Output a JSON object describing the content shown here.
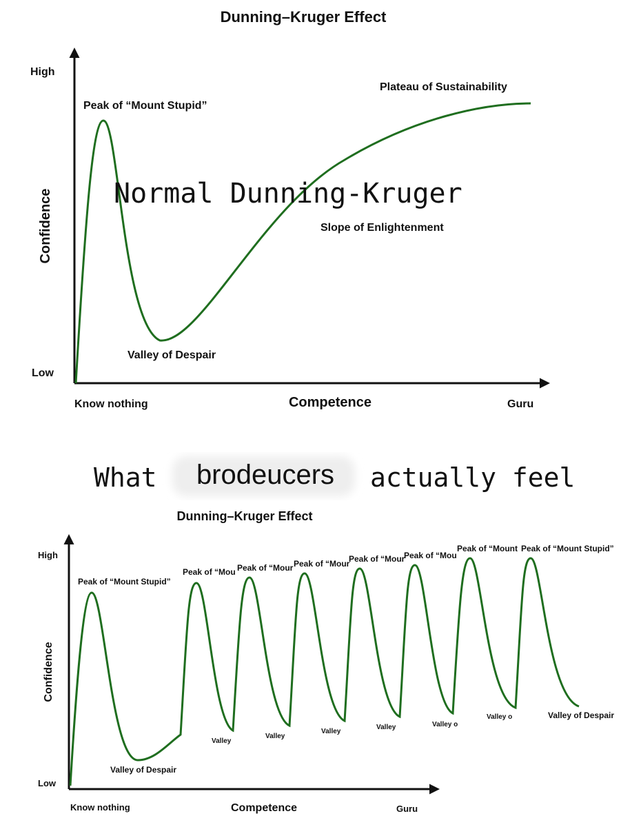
{
  "top": {
    "title": "Dunning–Kruger Effect",
    "y_high": "High",
    "y_low": "Low",
    "y_label": "Confidence",
    "x_label": "Competence",
    "x_start": "Know nothing",
    "x_end": "Guru",
    "peak": "Peak of “Mount Stupid”",
    "plateau": "Plateau of Sustainability",
    "slope": "Slope of Enlightenment",
    "valley": "Valley of Despair",
    "overlay": "Normal Dunning-Kruger"
  },
  "caption": {
    "before": "What",
    "word": "brodeucers",
    "after": "actually feel"
  },
  "bottom": {
    "title": "Dunning–Kruger Effect",
    "y_high": "High",
    "y_low": "Low",
    "y_label": "Confidence",
    "x_label": "Competence",
    "x_start": "Know nothing",
    "x_end": "Guru",
    "peaks": [
      "Peak of “Mount Stupid”",
      "Peak of “Mou",
      "Peak of “Mour",
      "Peak of “Mour",
      "Peak of “Mour",
      "Peak of “Mou",
      "Peak of “Mount",
      "Peak of “Mount Stupid”"
    ],
    "valleys": [
      "Valley of Despair",
      "Valley",
      "Valley",
      "Valley",
      "Valley",
      "Valley o",
      "Valley o",
      "Valley of Despair"
    ]
  }
}
